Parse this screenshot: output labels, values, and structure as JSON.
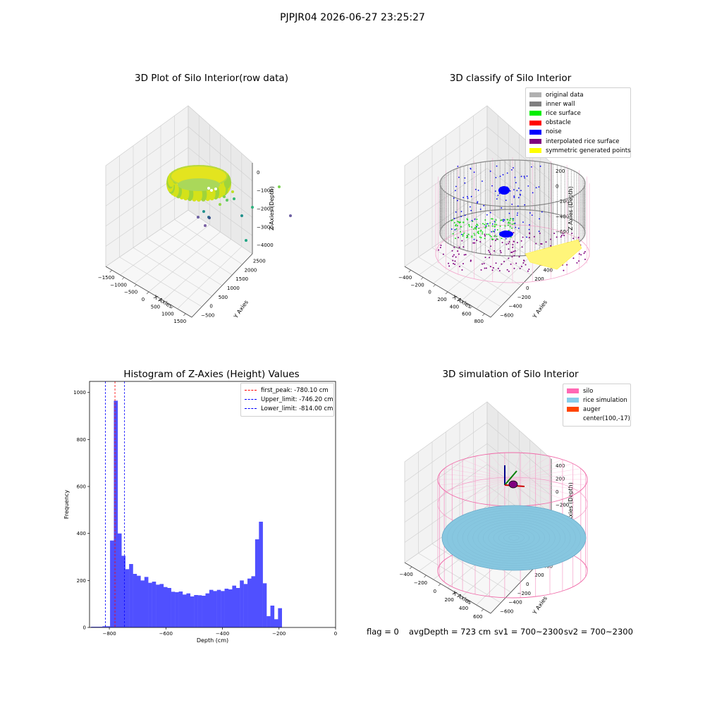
{
  "suptitle": "PJPJR04 2026-06-27 23:25:27",
  "panels": {
    "raw": {
      "title": "3D Plot of Silo Interior(row data)",
      "xlabel": "X Axies",
      "ylabel": "Y Axies",
      "zlabel": "Z Axies (Depth)",
      "xticks": [
        "−1500",
        "−1000",
        "−500",
        "0",
        "500",
        "1000",
        "1500"
      ],
      "yticks": [
        "−500",
        "0",
        "500",
        "1000",
        "1500",
        "2000",
        "2500"
      ],
      "zticks": [
        "0",
        "−1000",
        "−2000",
        "−3000",
        "−4000"
      ]
    },
    "classify": {
      "title": "3D classify of Silo Interior",
      "xlabel": "X Axies",
      "ylabel": "Y Axies",
      "zlabel": "Z Axies (Depth)",
      "xticks": [
        "−400",
        "−200",
        "0",
        "200",
        "400",
        "600",
        "800"
      ],
      "yticks": [
        "−600",
        "−400",
        "−200",
        "0",
        "200",
        "400",
        "600"
      ],
      "zticks": [
        "200",
        "0",
        "−200",
        "−400",
        "−600",
        "−800"
      ],
      "legend": [
        {
          "label": "original data",
          "color": "#b0b0b0"
        },
        {
          "label": "inner wall",
          "color": "#808080"
        },
        {
          "label": "rice surface",
          "color": "#00ee00"
        },
        {
          "label": "obstacle",
          "color": "#ff0000"
        },
        {
          "label": "noise",
          "color": "#0000ff"
        },
        {
          "label": "interpolated rice surface",
          "color": "#800080"
        },
        {
          "label": "symmetric generated points",
          "color": "#ffff00"
        }
      ]
    },
    "simulation": {
      "title": "3D simulation of Silo Interior",
      "xlabel": "X Axies",
      "ylabel": "Y Axies",
      "zlabel": "Z Axies (Depth)",
      "xticks": [
        "−400",
        "−200",
        "0",
        "200",
        "400",
        "600"
      ],
      "yticks": [
        "−600",
        "−400",
        "−200",
        "0",
        "200",
        "400",
        "600"
      ],
      "zticks": [
        "400",
        "200",
        "0",
        "−200",
        "−400",
        "−600",
        "−800"
      ],
      "legend": [
        {
          "label": "silo",
          "color": "#ff69b4"
        },
        {
          "label": "rice simulation",
          "color": "#87ceeb"
        },
        {
          "label": "auger",
          "color": "#ff4500"
        },
        {
          "label": "center(100,-17)",
          "color": ""
        }
      ]
    }
  },
  "chart_data": {
    "type": "bar",
    "title": "Histogram of Z-Axies (Height) Values",
    "xlabel": "Depth (cm)",
    "ylabel": "Frequency",
    "xlim": [
      -870,
      0
    ],
    "ylim": [
      0,
      1000
    ],
    "xticks": [
      -800,
      -600,
      -400,
      -200,
      0
    ],
    "yticks": [
      0,
      200,
      400,
      600,
      800,
      1000
    ],
    "bins": {
      "start": -865,
      "width": 13.5,
      "values": [
        3,
        3,
        3,
        5,
        5,
        370,
        965,
        400,
        305,
        248,
        270,
        228,
        220,
        200,
        215,
        190,
        195,
        182,
        185,
        172,
        168,
        152,
        150,
        153,
        140,
        145,
        132,
        138,
        137,
        135,
        145,
        160,
        155,
        160,
        155,
        165,
        162,
        178,
        168,
        200,
        185,
        208,
        218,
        375,
        450,
        188,
        48,
        93,
        35,
        82
      ]
    },
    "vlines": [
      {
        "label": "first_peak: -780.10 cm",
        "x": -780.1,
        "color": "#ff0000"
      },
      {
        "label": "Upper_limit: -746.20 cm",
        "x": -746.2,
        "color": "#0000ff"
      },
      {
        "label": "Lower_limit: -814.00 cm",
        "x": -814.0,
        "color": "#0000ff"
      }
    ]
  },
  "footer": {
    "flag": "flag = 0",
    "avg_depth": "avgDepth = 723 cm",
    "sv1": "sv1 = 700~2300",
    "sv2": "sv2 = 700~2300"
  }
}
